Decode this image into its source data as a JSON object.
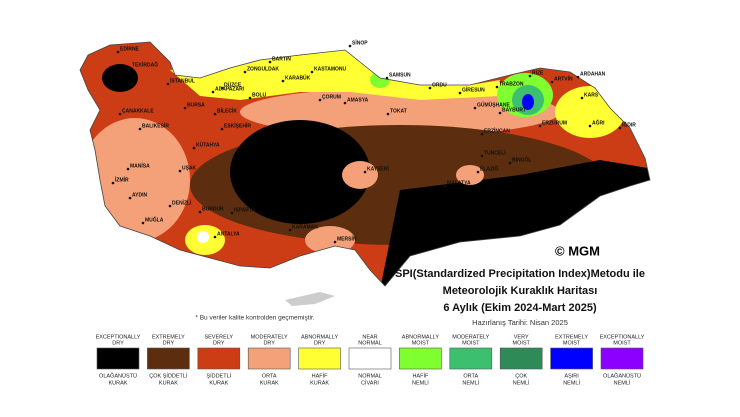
{
  "map": {
    "credit": "© MGM",
    "title_lines": [
      "SPI(Standardized Precipitation Index)Metodu ile",
      "Meteorolojik Kuraklık Haritası",
      "6 Aylık (Ekim 2024-Mart 2025)"
    ],
    "date": "Hazırlanış Tarihi: Nisan 2025",
    "note": "* Bu veriler kalite kontrolden geçmemiştir."
  },
  "legend": [
    {
      "en": [
        "EXCEPTIONALLY",
        "DRY"
      ],
      "tr": [
        "OLAĞANÜSTÜ",
        "KURAK"
      ],
      "color": "#000000"
    },
    {
      "en": [
        "EXTREMELY",
        "DRY"
      ],
      "tr": [
        "ÇOK ŞİDDETLİ",
        "KURAK"
      ],
      "color": "#5c2d0e"
    },
    {
      "en": [
        "SEVERELY",
        "DRY"
      ],
      "tr": [
        "ŞİDDETLİ",
        "KURAK"
      ],
      "color": "#cc3d16"
    },
    {
      "en": [
        "MODERATELY",
        "DRY"
      ],
      "tr": [
        "ORTA",
        "KURAK"
      ],
      "color": "#f4a078"
    },
    {
      "en": [
        "ABNORMALLY",
        "DRY"
      ],
      "tr": [
        "HAFİF",
        "KURAK"
      ],
      "color": "#ffff33"
    },
    {
      "en": [
        "NEAR",
        "NORMAL"
      ],
      "tr": [
        "NORMAL",
        "CİVARI"
      ],
      "color": "#ffffff"
    },
    {
      "en": [
        "ABNORMALLY",
        "MOIST"
      ],
      "tr": [
        "HAFİF",
        "NEMLİ"
      ],
      "color": "#80ff30"
    },
    {
      "en": [
        "MODERATELY",
        "MOIST"
      ],
      "tr": [
        "ORTA",
        "NEMLİ"
      ],
      "color": "#3cc070"
    },
    {
      "en": [
        "VERY",
        "MOIST"
      ],
      "tr": [
        "ÇOK",
        "NEMLİ"
      ],
      "color": "#2e8b57"
    },
    {
      "en": [
        "EXTREMELY",
        "MOIST"
      ],
      "tr": [
        "AŞIRI",
        "NEMLİ"
      ],
      "color": "#0000ff"
    },
    {
      "en": [
        "EXCEPTIONALLY",
        "MOIST"
      ],
      "tr": [
        "OLAĞANÜSTÜ",
        "NEMLİ"
      ],
      "color": "#8b00ff"
    }
  ],
  "cities": [
    "SİNOP",
    "BARTIN",
    "ZONGULDAK",
    "KASTAMONU",
    "KARABÜK",
    "DÜZCE",
    "BOLU",
    "ADAPAZARI",
    "SAMSUN",
    "ORDU",
    "GİRESUN",
    "TRABZON",
    "RİZE",
    "ARTVİN",
    "ARDAHAN",
    "KARS",
    "IĞDIR",
    "AĞRI",
    "ERZURUM",
    "BAYBURT",
    "GÜMÜŞHANE",
    "ERZİNCAN",
    "TUNCELİ",
    "BİNGÖL",
    "ELAZIĞ",
    "MALATYA",
    "AMASYA",
    "TOKAT",
    "ÇORUM",
    "İSTANBUL",
    "EDİRNE",
    "TEKİRDAĞ",
    "ÇANAKKALE",
    "BALIKESİR",
    "BURSA",
    "BİLECİK",
    "ESKİŞEHİR",
    "KÜTAHYA",
    "MANİSA",
    "İZMİR",
    "UŞAK",
    "AYDIN",
    "DENİZLİ",
    "MUĞLA",
    "BURDUR",
    "ISPARTA",
    "ANTALYA",
    "KARAMAN",
    "MERSİN",
    "KAYSERİ"
  ]
}
